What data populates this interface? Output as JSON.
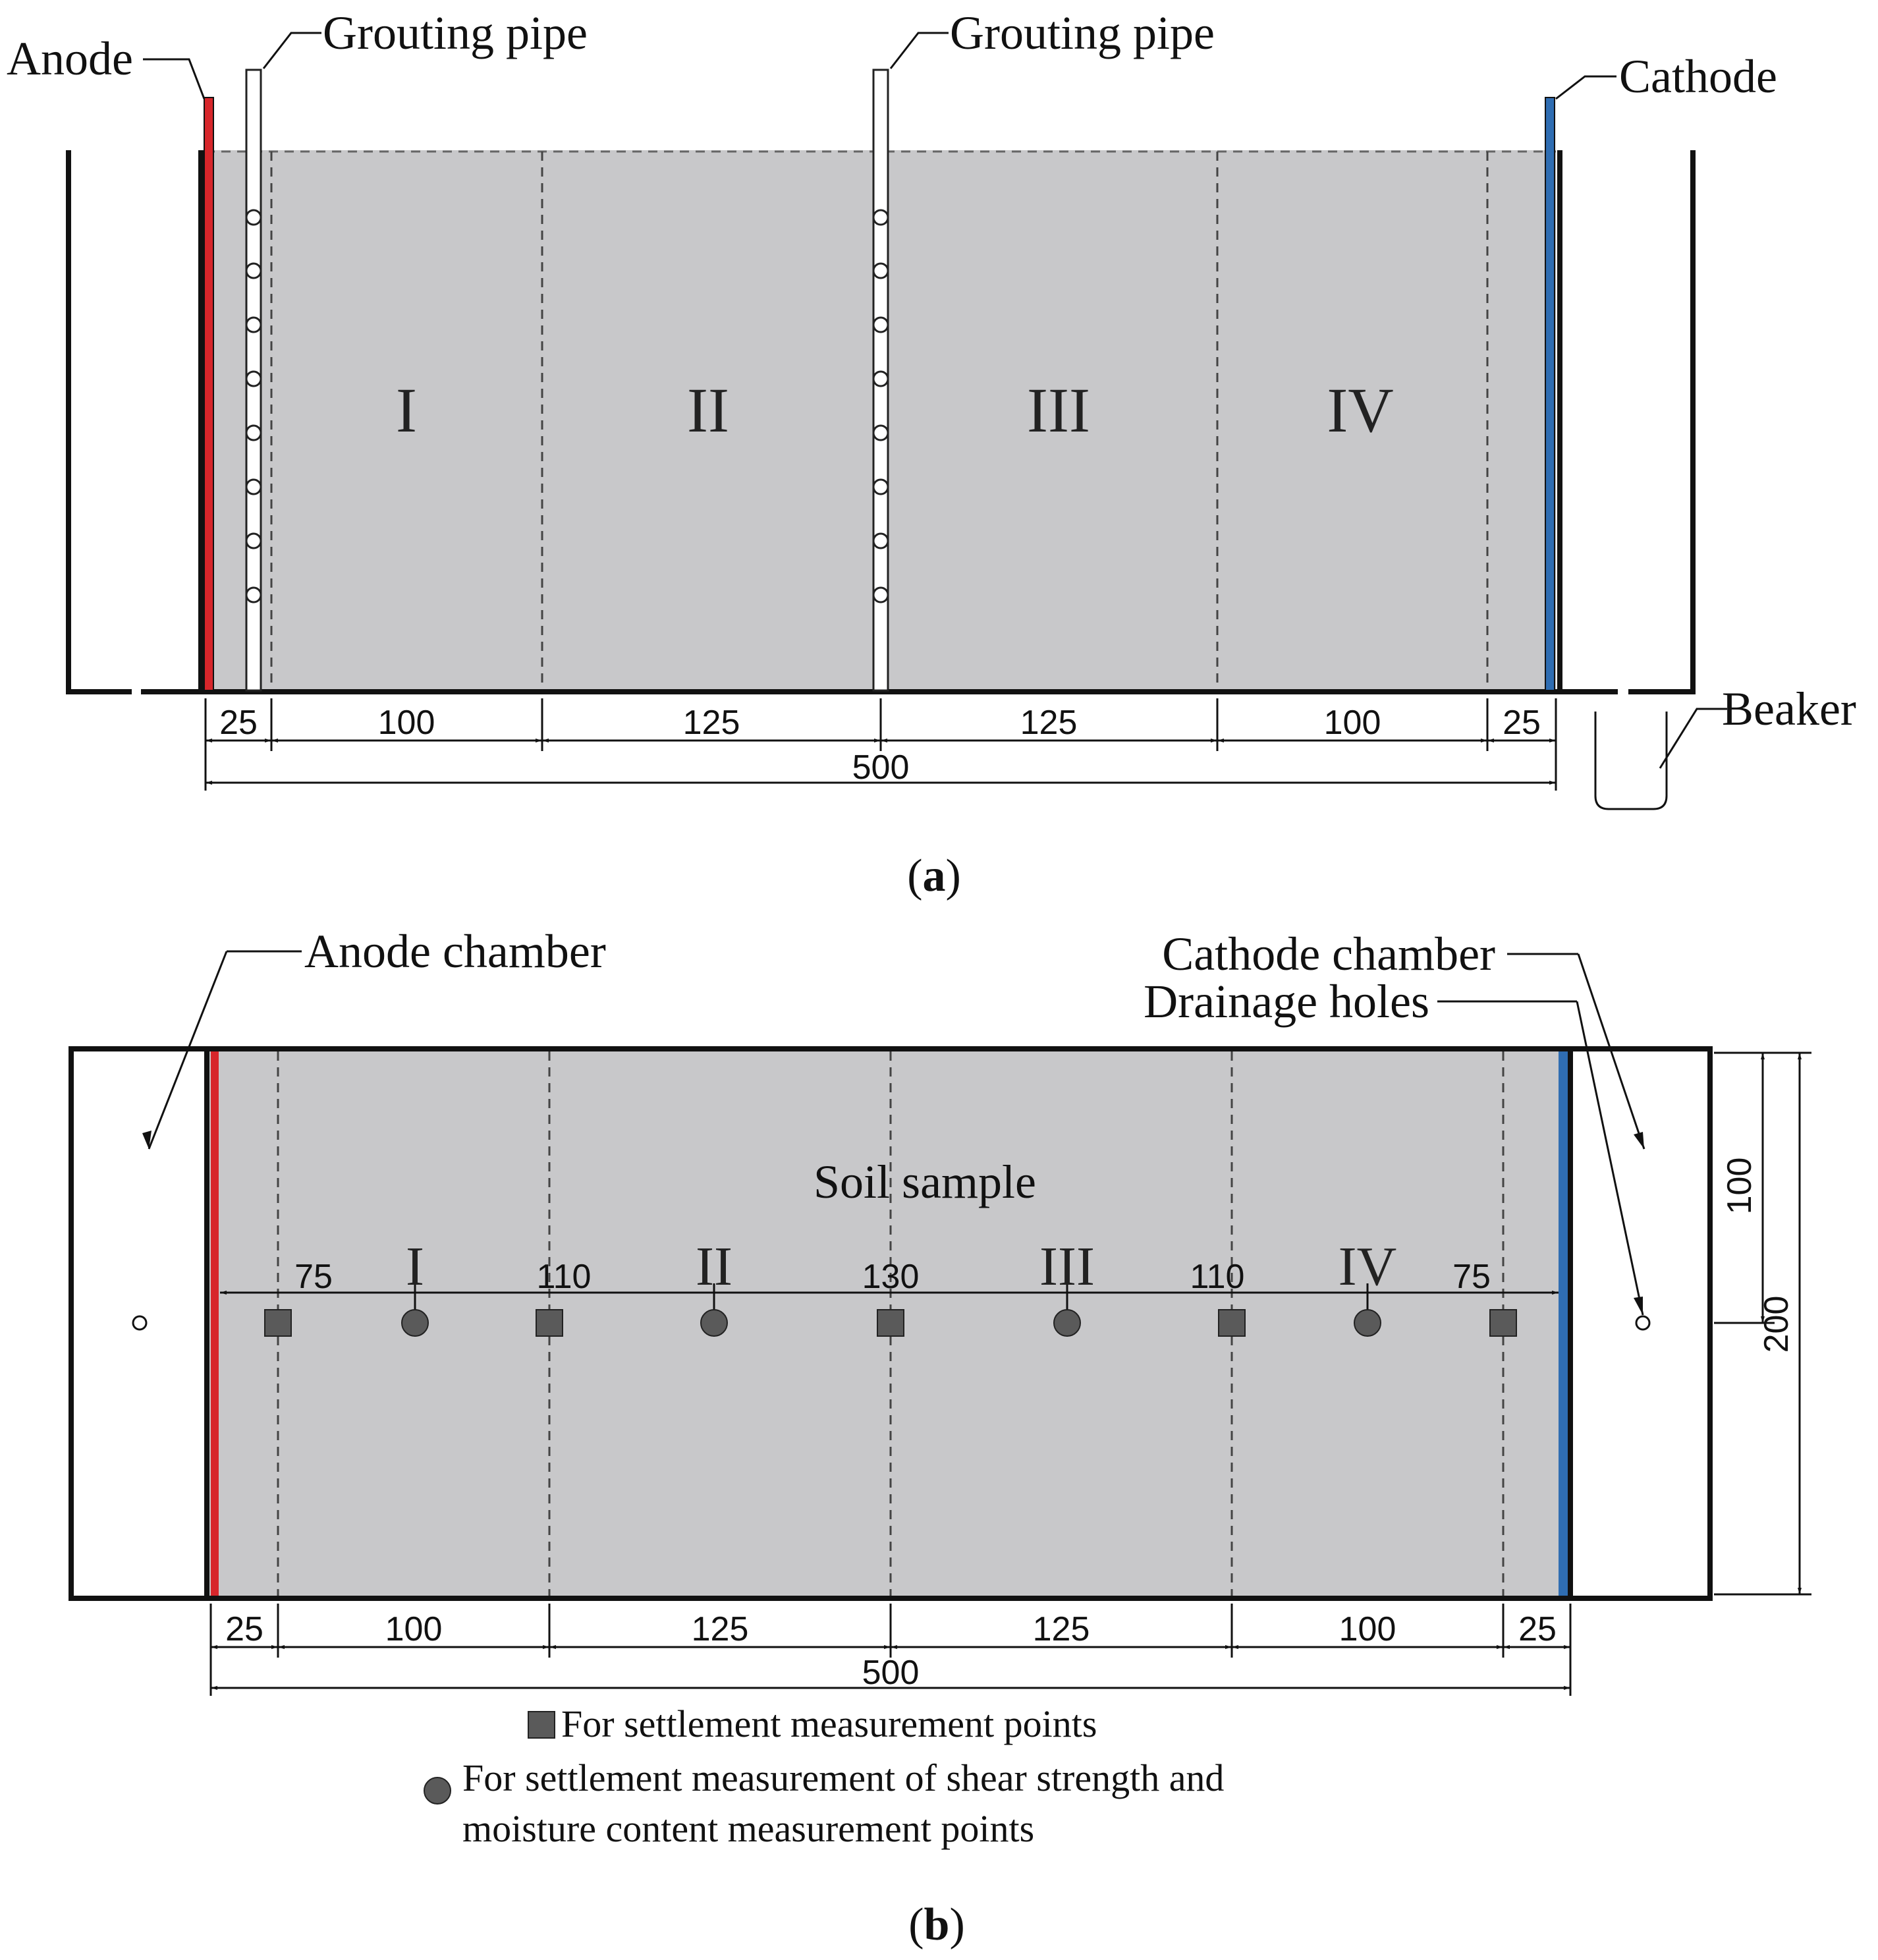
{
  "panel_a": {
    "caption_open": "(",
    "caption_letter": "a",
    "caption_close": ")",
    "labels": {
      "anode": "Anode",
      "grouting_pipe_1": "Grouting pipe",
      "grouting_pipe_2": "Grouting pipe",
      "cathode": "Cathode",
      "beaker": "Beaker"
    },
    "zones": [
      "I",
      "II",
      "III",
      "IV"
    ],
    "segment_dims": [
      "25",
      "100",
      "125",
      "125",
      "100",
      "25"
    ],
    "total_dim": "500",
    "colors": {
      "anode": "#d7262b",
      "cathode": "#2f6db2",
      "soil": "#c8c8ca"
    }
  },
  "panel_b": {
    "caption_open": "(",
    "caption_letter": "b",
    "caption_close": ")",
    "labels": {
      "anode_chamber": "Anode chamber",
      "cathode_chamber": "Cathode chamber",
      "drainage_holes": "Drainage holes",
      "soil_sample": "Soil sample"
    },
    "zones": [
      "I",
      "II",
      "III",
      "IV"
    ],
    "point_spacing_dims": [
      "75",
      "110",
      "130",
      "110",
      "75"
    ],
    "segment_dims": [
      "25",
      "100",
      "125",
      "125",
      "100",
      "25"
    ],
    "total_dim": "500",
    "height_dims": [
      "100",
      "200"
    ],
    "legend": {
      "square": "For settlement measurement points",
      "circle_line1": "For settlement measurement of shear strength and",
      "circle_line2": "moisture content measurement points"
    }
  }
}
